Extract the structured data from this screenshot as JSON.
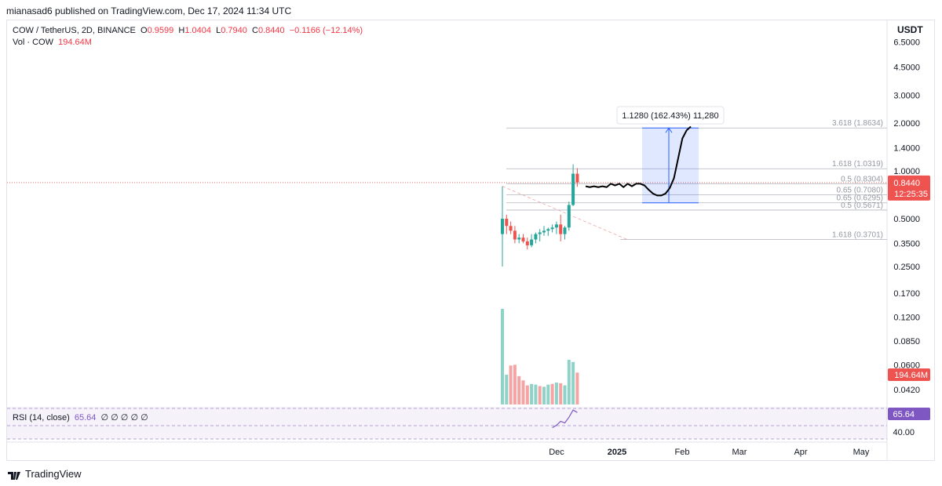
{
  "header": {
    "published_by": "mianasad6 published on TradingView.com, Dec 17, 2024 11:34 UTC"
  },
  "legend": {
    "symbol": "COW / TetherUS, 2D, BINANCE",
    "open_label": "O",
    "open": "0.9599",
    "high_label": "H",
    "high": "1.0404",
    "low_label": "L",
    "low": "0.7940",
    "close_label": "C",
    "close": "0.8440",
    "change": "−0.1166 (−12.14%)",
    "vol_label": "Vol · COW",
    "vol_value": "194.64M"
  },
  "currency": "USDT",
  "rsi": {
    "label": "RSI (14, close)",
    "value": "65.64",
    "extras": "∅ ∅ ∅ ∅ ∅"
  },
  "brand": "TradingView",
  "colors": {
    "up": "#26a69a",
    "down": "#ef5350",
    "rsi": "#7e57c2",
    "measure": "#2962ff"
  },
  "chart_data": {
    "type": "candlestick",
    "y_scale": "log",
    "price_axis_labels": [
      "6.5000",
      "4.5000",
      "3.0000",
      "2.0000",
      "1.4000",
      "1.0000",
      "0.8440",
      "0.5000",
      "0.3500",
      "0.2500",
      "0.1700",
      "0.1200",
      "0.0850",
      "0.0600",
      "0.0420"
    ],
    "time_axis_labels": [
      "Dec",
      "2025",
      "Feb",
      "Mar",
      "Apr",
      "May"
    ],
    "rsi_axis_labels": [
      "65.64",
      "40.00"
    ],
    "current_price": {
      "value": 0.844,
      "label": "0.8440",
      "countdown": "12:25:35"
    },
    "volume_label": "194.64M",
    "candles": [
      {
        "o": 0.4,
        "h": 0.8,
        "l": 0.25,
        "c": 0.5
      },
      {
        "o": 0.5,
        "h": 0.53,
        "l": 0.4,
        "c": 0.45
      },
      {
        "o": 0.45,
        "h": 0.48,
        "l": 0.4,
        "c": 0.42
      },
      {
        "o": 0.42,
        "h": 0.45,
        "l": 0.35,
        "c": 0.37
      },
      {
        "o": 0.37,
        "h": 0.4,
        "l": 0.35,
        "c": 0.38
      },
      {
        "o": 0.38,
        "h": 0.4,
        "l": 0.35,
        "c": 0.36
      },
      {
        "o": 0.36,
        "h": 0.38,
        "l": 0.32,
        "c": 0.34
      },
      {
        "o": 0.34,
        "h": 0.4,
        "l": 0.33,
        "c": 0.37
      },
      {
        "o": 0.37,
        "h": 0.41,
        "l": 0.35,
        "c": 0.4
      },
      {
        "o": 0.4,
        "h": 0.43,
        "l": 0.36,
        "c": 0.41
      },
      {
        "o": 0.41,
        "h": 0.45,
        "l": 0.39,
        "c": 0.42
      },
      {
        "o": 0.42,
        "h": 0.44,
        "l": 0.39,
        "c": 0.43
      },
      {
        "o": 0.43,
        "h": 0.46,
        "l": 0.41,
        "c": 0.44
      },
      {
        "o": 0.44,
        "h": 0.48,
        "l": 0.4,
        "c": 0.46
      },
      {
        "o": 0.46,
        "h": 0.53,
        "l": 0.36,
        "c": 0.4
      },
      {
        "o": 0.4,
        "h": 0.45,
        "l": 0.37,
        "c": 0.44
      },
      {
        "o": 0.44,
        "h": 0.64,
        "l": 0.42,
        "c": 0.61
      },
      {
        "o": 0.61,
        "h": 1.1,
        "l": 0.6,
        "c": 0.96
      },
      {
        "o": 0.9599,
        "h": 1.0404,
        "l": 0.794,
        "c": 0.844
      }
    ],
    "volumes": [
      {
        "v": 0.0135,
        "up": true
      },
      {
        "v": 0.0042,
        "up": true
      },
      {
        "v": 0.0055,
        "up": false
      },
      {
        "v": 0.0056,
        "up": false
      },
      {
        "v": 0.004,
        "up": false
      },
      {
        "v": 0.0034,
        "up": false
      },
      {
        "v": 0.0027,
        "up": false
      },
      {
        "v": 0.0029,
        "up": true
      },
      {
        "v": 0.0028,
        "up": true
      },
      {
        "v": 0.0026,
        "up": false
      },
      {
        "v": 0.0025,
        "up": true
      },
      {
        "v": 0.0028,
        "up": true
      },
      {
        "v": 0.0029,
        "up": false
      },
      {
        "v": 0.0031,
        "up": true
      },
      {
        "v": 0.003,
        "up": false
      },
      {
        "v": 0.0027,
        "up": true
      },
      {
        "v": 0.0063,
        "up": true
      },
      {
        "v": 0.006,
        "up": true
      },
      {
        "v": 0.0045,
        "up": false
      }
    ],
    "rsi_values": [
      44,
      47,
      52,
      50,
      57,
      66,
      63
    ],
    "fib_levels": [
      {
        "label": "3.618 (1.8634)",
        "value": 1.8634
      },
      {
        "label": "1.618 (1.0319)",
        "value": 1.0319
      },
      {
        "label": "0.5 (0.8304)",
        "value": 0.8304
      },
      {
        "label": "0.65 (0.7080)",
        "value": 0.708
      },
      {
        "label": "0.65 (0.6295)",
        "value": 0.6295
      },
      {
        "label": "0.5 (0.5671)",
        "value": 0.5671
      },
      {
        "label": "1.618 (0.3701)",
        "value": 0.3701
      }
    ],
    "measure": {
      "label": "1.1280 (162.43%) 11,280",
      "from": 0.6295,
      "to": 1.8634,
      "projection": [
        0.8,
        0.79,
        0.8,
        0.79,
        0.8,
        0.79,
        0.83,
        0.81,
        0.83,
        0.79,
        0.83,
        0.8,
        0.83,
        0.83,
        0.81,
        0.76,
        0.72,
        0.7,
        0.7,
        0.72,
        0.78,
        0.9,
        1.2,
        1.6,
        1.8,
        1.9
      ]
    },
    "trendline": {
      "from": 0.8,
      "to": 0.37
    }
  }
}
